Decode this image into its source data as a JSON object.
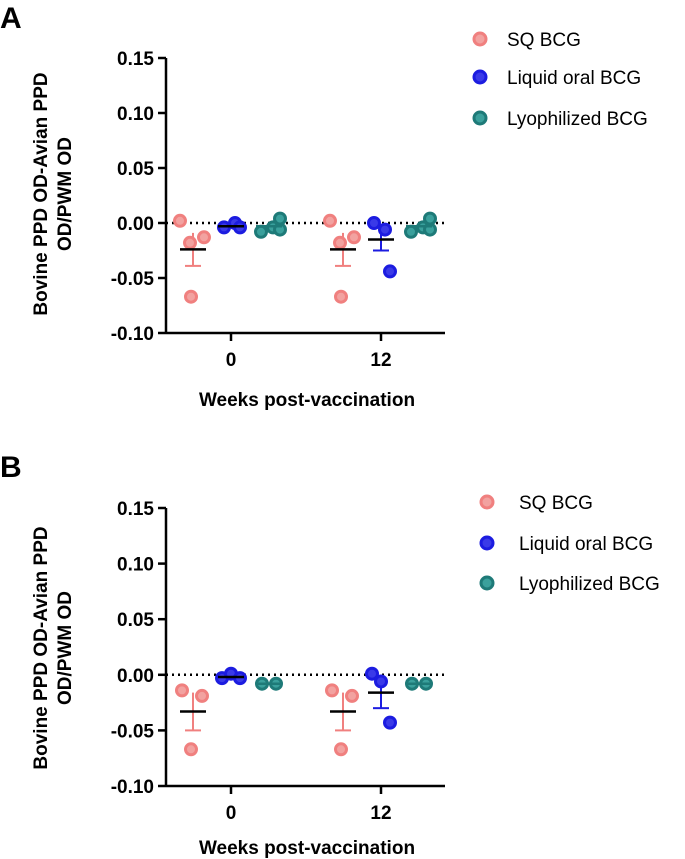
{
  "chart_data": [
    {
      "panel": "A",
      "type": "scatter",
      "title": "",
      "xlabel": "Weeks post-vaccination",
      "ylabel_lines": [
        "Bovine PPD OD-Avian PPD",
        "OD/PWM OD"
      ],
      "categories": [
        "0",
        "12"
      ],
      "ylim": [
        -0.1,
        0.15
      ],
      "yticks": [
        0.15,
        0.1,
        0.05,
        0.0,
        -0.05,
        -0.1
      ],
      "ytick_labels": [
        "0.15",
        "0.10",
        "0.05",
        "0.00",
        "-0.05",
        "-0.10"
      ],
      "reference_line": 0,
      "series": [
        {
          "name": "SQ BCG",
          "color": "#f0807f",
          "fill": "#f2a2a0",
          "points": [
            [
              0.002,
              -0.013,
              -0.018,
              -0.067
            ],
            [
              0.002,
              -0.013,
              -0.018,
              -0.067
            ]
          ],
          "mean": [
            -0.024,
            -0.024
          ],
          "sem": [
            0.015,
            0.015
          ]
        },
        {
          "name": "Liquid oral BCG",
          "color": "#1c1ce0",
          "fill": "#3a3ae8",
          "points": [
            [
              -0.004,
              0.0,
              -0.004
            ],
            [
              0.0,
              -0.006,
              -0.044
            ]
          ],
          "mean": [
            -0.003,
            -0.015
          ],
          "sem": [
            0.001,
            0.01
          ]
        },
        {
          "name": "Lyophilized BCG",
          "color": "#1e7a78",
          "fill": "#3aa09c",
          "points": [
            [
              -0.008,
              -0.004,
              0.004,
              -0.006
            ],
            [
              -0.008,
              -0.004,
              0.004,
              -0.006
            ]
          ],
          "mean": [
            -0.003,
            -0.003
          ],
          "sem": [
            0.002,
            0.002
          ]
        }
      ]
    },
    {
      "panel": "B",
      "type": "scatter",
      "title": "",
      "xlabel": "Weeks post-vaccination",
      "ylabel_lines": [
        "Bovine PPD OD-Avian PPD",
        "OD/PWM OD"
      ],
      "categories": [
        "0",
        "12"
      ],
      "ylim": [
        -0.1,
        0.15
      ],
      "yticks": [
        0.15,
        0.1,
        0.05,
        0.0,
        -0.05,
        -0.1
      ],
      "ytick_labels": [
        "0.15",
        "0.10",
        "0.05",
        "0.00",
        "-0.05",
        "-0.10"
      ],
      "reference_line": 0,
      "series": [
        {
          "name": "SQ BCG",
          "color": "#f0807f",
          "fill": "#f2a2a0",
          "points": [
            [
              -0.014,
              -0.019,
              -0.067
            ],
            [
              -0.014,
              -0.019,
              -0.067
            ]
          ],
          "mean": [
            -0.033,
            -0.033
          ],
          "sem": [
            0.017,
            0.017
          ]
        },
        {
          "name": "Liquid oral BCG",
          "color": "#1c1ce0",
          "fill": "#3a3ae8",
          "points": [
            [
              -0.003,
              0.001,
              -0.003
            ],
            [
              0.001,
              -0.006,
              -0.043
            ]
          ],
          "mean": [
            -0.002,
            -0.016
          ],
          "sem": [
            0.001,
            0.014
          ]
        },
        {
          "name": "Lyophilized BCG",
          "color": "#1e7a78",
          "fill": "#3aa09c",
          "points": [
            [
              -0.008,
              -0.008
            ],
            [
              -0.008,
              -0.008
            ]
          ],
          "mean": [
            -0.008,
            -0.008
          ],
          "sem": [
            0.0,
            0.0
          ]
        }
      ]
    }
  ]
}
